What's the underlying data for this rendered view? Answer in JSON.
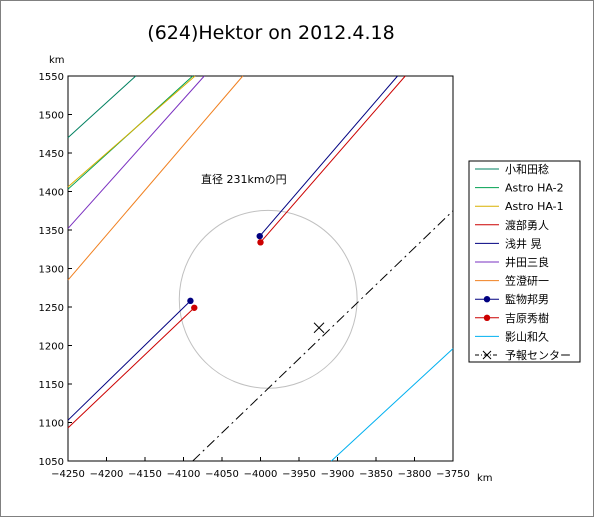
{
  "chart_data": {
    "type": "line",
    "title": "(624)Hektor on 2012.4.18",
    "x_unit": "km",
    "y_unit": "km",
    "xlim": [
      -4250,
      -3750
    ],
    "ylim": [
      1050,
      1550
    ],
    "xticks": [
      -4250,
      -4200,
      -4150,
      -4100,
      -4050,
      -4000,
      -3950,
      -3900,
      -3850,
      -3800,
      -3750
    ],
    "yticks": [
      1050,
      1100,
      1150,
      1200,
      1250,
      1300,
      1350,
      1400,
      1450,
      1500,
      1550
    ],
    "grid": false,
    "legend_position": "right",
    "annotation": {
      "text": "直径 231kmの円",
      "x": -4080,
      "y": 1411
    },
    "circle": {
      "cx": -3990,
      "cy": 1260,
      "r": 115.5,
      "color": "#c0c0c0"
    },
    "series": [
      {
        "name": "小和田稔",
        "color": "#008060",
        "kind": "line",
        "segments": [
          [
            [
              -4250,
              1470
            ],
            [
              -4162,
              1550
            ]
          ]
        ]
      },
      {
        "name": "Astro HA-2",
        "color": "#00a050",
        "kind": "line",
        "segments": [
          [
            [
              -4250,
              1403
            ],
            [
              -4088,
              1550
            ]
          ]
        ]
      },
      {
        "name": "Astro HA-1",
        "color": "#d8b000",
        "kind": "line",
        "segments": [
          [
            [
              -4250,
              1406
            ],
            [
              -4085,
              1550
            ]
          ]
        ]
      },
      {
        "name": "渡部勇人",
        "color": "#cc0000",
        "kind": "line",
        "segments": [
          [
            [
              -4250,
              1093
            ],
            [
              -4086,
              1249
            ]
          ],
          [
            [
              -4000,
              1334
            ],
            [
              -3812,
              1550
            ]
          ]
        ]
      },
      {
        "name": "浅井 晃",
        "color": "#000080",
        "kind": "line",
        "segments": [
          [
            [
              -4250,
              1103
            ],
            [
              -4091,
              1258
            ]
          ],
          [
            [
              -4001,
              1342
            ],
            [
              -3822,
              1550
            ]
          ]
        ]
      },
      {
        "name": "井田三良",
        "color": "#7a30c0",
        "kind": "line",
        "segments": [
          [
            [
              -4250,
              1352
            ],
            [
              -4073,
              1550
            ]
          ]
        ]
      },
      {
        "name": "笠澄研一",
        "color": "#f08020",
        "kind": "line",
        "segments": [
          [
            [
              -4250,
              1285
            ],
            [
              -4023,
              1550
            ]
          ]
        ]
      },
      {
        "name": "監物邦男",
        "color": "#000080",
        "kind": "point",
        "points": [
          [
            -4091,
            1258
          ],
          [
            -4001,
            1342
          ]
        ]
      },
      {
        "name": "吉原秀樹",
        "color": "#cc0000",
        "kind": "point",
        "points": [
          [
            -4086,
            1249
          ],
          [
            -4000,
            1334
          ]
        ]
      },
      {
        "name": "影山和久",
        "color": "#00b0f0",
        "kind": "line",
        "segments": [
          [
            [
              -3908,
              1050
            ],
            [
              -3750,
              1196
            ]
          ]
        ]
      },
      {
        "name": "予報センター",
        "color": "#000000",
        "kind": "dashdot",
        "segments": [
          [
            [
              -4088,
              1050
            ],
            [
              -3750,
              1375
            ]
          ]
        ],
        "marker": [
          -3924,
          1223
        ]
      }
    ]
  }
}
